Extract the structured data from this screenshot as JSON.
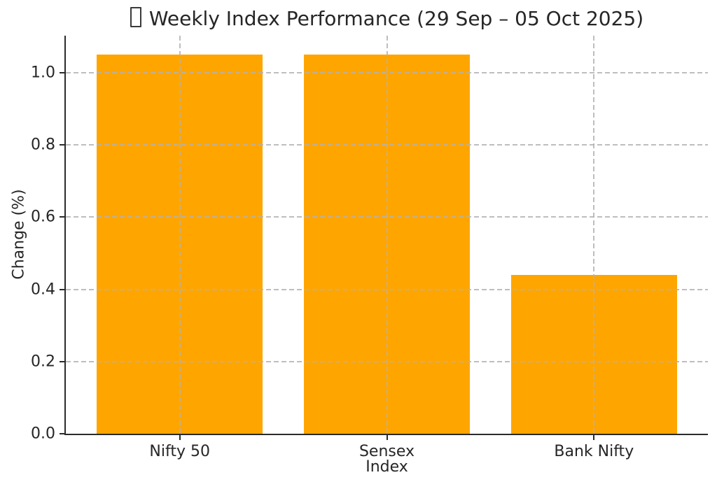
{
  "chart_data": {
    "type": "bar",
    "title": "Weekly Index Performance (29 Sep – 05 Oct 2025)",
    "title_leading_icon": "missing-glyph-box",
    "categories": [
      "Nifty 50",
      "Sensex",
      "Bank Nifty"
    ],
    "values": [
      1.05,
      1.05,
      0.44
    ],
    "xlabel": "Index",
    "ylabel": "Change (%)",
    "ylim": [
      0,
      1.1025
    ],
    "ytick_values": [
      0.0,
      0.2,
      0.4,
      0.6,
      0.8,
      1.0
    ],
    "ytick_labels": [
      "0.0",
      "0.2",
      "0.4",
      "0.6",
      "0.8",
      "1.0"
    ],
    "bar_color": "#FFA500",
    "grid": "dashed",
    "grid_color": "#b2b2b2",
    "grid_above_bars": true,
    "spines": [
      "left",
      "bottom"
    ],
    "legend": "none"
  }
}
